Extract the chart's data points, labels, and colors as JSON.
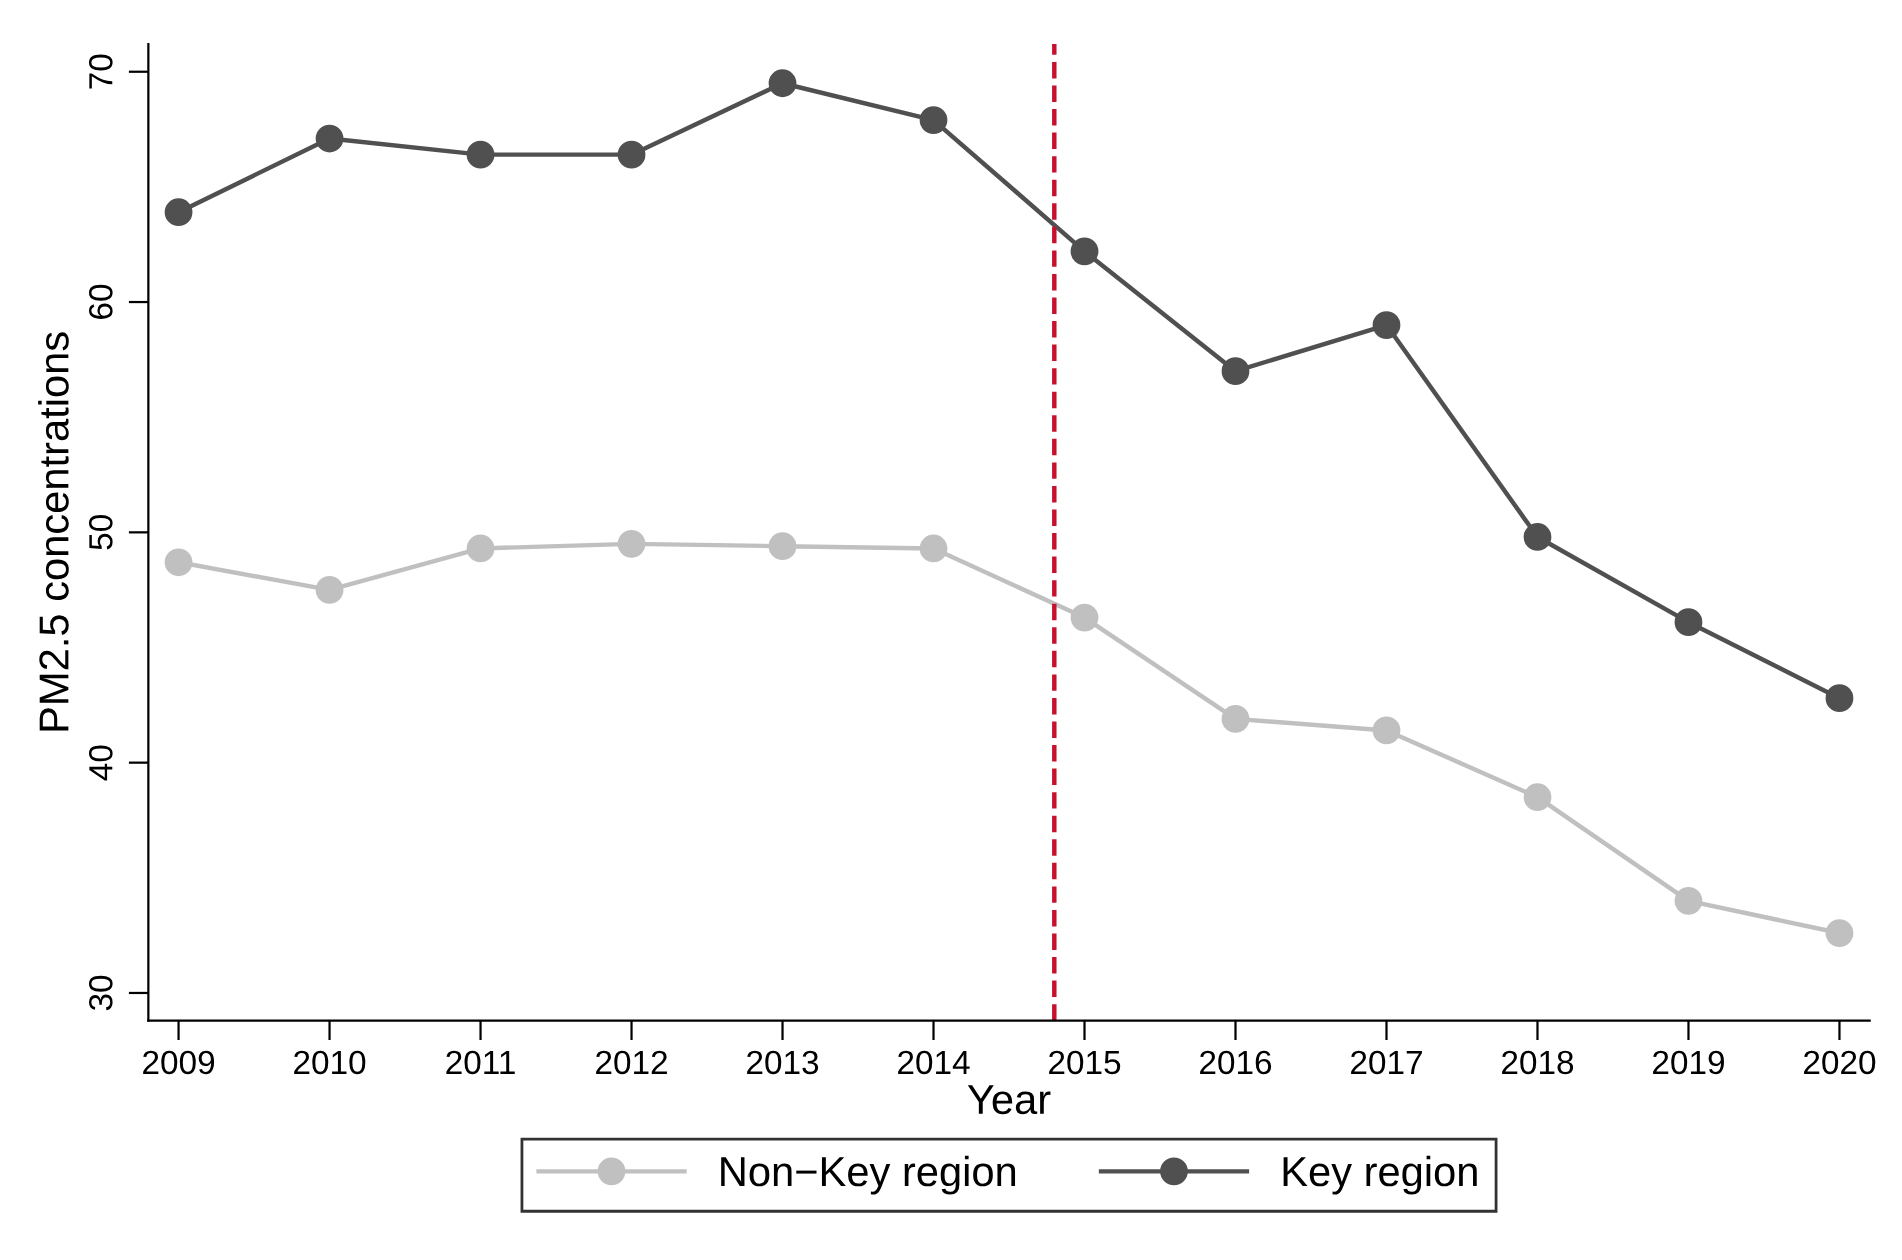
{
  "chart_data": {
    "type": "line",
    "xlabel": "Year",
    "ylabel": "PM2.5 concentrations",
    "x": [
      2009,
      2010,
      2011,
      2012,
      2013,
      2014,
      2015,
      2016,
      2017,
      2018,
      2019,
      2020
    ],
    "series": [
      {
        "name": "Non−Key region",
        "color": "#c0c0c0",
        "values": [
          48.7,
          47.5,
          49.3,
          49.5,
          49.4,
          49.3,
          46.3,
          41.9,
          41.4,
          38.5,
          34.0,
          32.6
        ]
      },
      {
        "name": "Key region",
        "color": "#505050",
        "values": [
          63.9,
          67.1,
          66.4,
          66.4,
          69.5,
          67.9,
          62.2,
          57.0,
          59.0,
          49.8,
          46.1,
          42.8
        ]
      }
    ],
    "xlim": [
      2008.8,
      2020.2
    ],
    "xticks": [
      2009,
      2010,
      2011,
      2012,
      2013,
      2014,
      2015,
      2016,
      2017,
      2018,
      2019,
      2020
    ],
    "ylim": [
      28.8,
      71.2
    ],
    "yticks": [
      30,
      40,
      50,
      60,
      70
    ],
    "ref_lines": [
      {
        "axis": "x",
        "value": 2014.8,
        "label": null,
        "color": "#c8102e",
        "line_style": "dashed"
      }
    ],
    "marker": "circle",
    "line_style": "solid",
    "grid": false,
    "legend": "bottom"
  }
}
